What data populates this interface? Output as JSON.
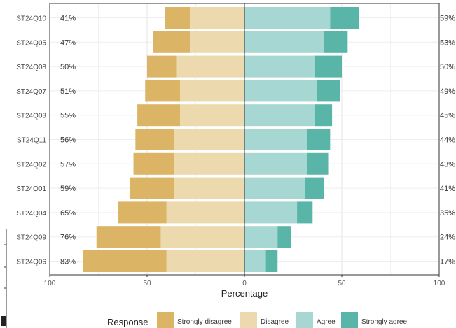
{
  "chart_data": {
    "type": "bar",
    "orientation": "horizontal-diverging",
    "xlabel": "Percentage",
    "xlim": [
      -100,
      100
    ],
    "xticks": [
      -100,
      -50,
      0,
      50,
      100
    ],
    "xtick_labels": [
      "100",
      "50",
      "0",
      "50",
      "100"
    ],
    "legend_title": "Response",
    "legend_position": "bottom",
    "grid": true,
    "categories": [
      "ST24Q10",
      "ST24Q05",
      "ST24Q08",
      "ST24Q07",
      "ST24Q03",
      "ST24Q11",
      "ST24Q02",
      "ST24Q01",
      "ST24Q04",
      "ST24Q09",
      "ST24Q06"
    ],
    "series": [
      {
        "name": "Strongly disagree",
        "color": "#dcb466",
        "values": [
          13,
          19,
          15,
          18,
          22,
          20,
          21,
          23,
          25,
          33,
          43
        ]
      },
      {
        "name": "Disagree",
        "color": "#ecd9ad",
        "values": [
          28,
          28,
          35,
          33,
          33,
          36,
          36,
          36,
          40,
          43,
          40
        ]
      },
      {
        "name": "Agree",
        "color": "#a6d7d3",
        "values": [
          44,
          41,
          36,
          37,
          36,
          32,
          32,
          31,
          27,
          17,
          11
        ]
      },
      {
        "name": "Strongly agree",
        "color": "#5ab5a9",
        "values": [
          15,
          12,
          14,
          12,
          9,
          12,
          11,
          10,
          8,
          7,
          6
        ]
      }
    ],
    "left_labels": [
      "41%",
      "47%",
      "50%",
      "51%",
      "55%",
      "56%",
      "57%",
      "59%",
      "65%",
      "76%",
      "83%"
    ],
    "right_labels": [
      "59%",
      "53%",
      "50%",
      "49%",
      "45%",
      "44%",
      "43%",
      "41%",
      "35%",
      "24%",
      "17%"
    ]
  }
}
